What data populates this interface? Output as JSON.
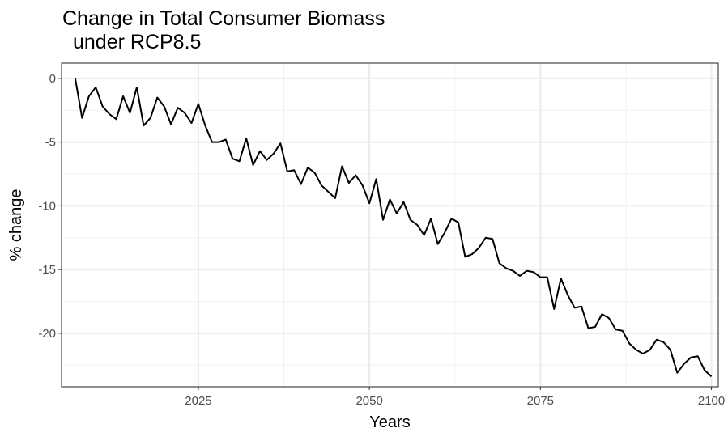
{
  "chart_data": {
    "type": "line",
    "title": [
      "Change in Total Consumer Biomass",
      "under RCP8.5"
    ],
    "xlabel": "Years",
    "ylabel": "% change",
    "xlim": [
      2005,
      2101
    ],
    "ylim": [
      -24.2,
      1.2
    ],
    "xticks": [
      2025,
      2050,
      2075,
      2100
    ],
    "yticks": [
      0,
      -5,
      -10,
      -15,
      -20
    ],
    "grid": true,
    "legend": "none",
    "series": [
      {
        "color": "#000000",
        "x": [
          2007,
          2008,
          2009,
          2010,
          2011,
          2012,
          2013,
          2014,
          2015,
          2016,
          2017,
          2018,
          2019,
          2020,
          2021,
          2022,
          2023,
          2024,
          2025,
          2026,
          2027,
          2028,
          2029,
          2030,
          2031,
          2032,
          2033,
          2034,
          2035,
          2036,
          2037,
          2038,
          2039,
          2040,
          2041,
          2042,
          2043,
          2044,
          2045,
          2046,
          2047,
          2048,
          2049,
          2050,
          2051,
          2052,
          2053,
          2054,
          2055,
          2056,
          2057,
          2058,
          2059,
          2060,
          2061,
          2062,
          2063,
          2064,
          2065,
          2066,
          2067,
          2068,
          2069,
          2070,
          2071,
          2072,
          2073,
          2074,
          2075,
          2076,
          2077,
          2078,
          2079,
          2080,
          2081,
          2082,
          2083,
          2084,
          2085,
          2086,
          2087,
          2088,
          2089,
          2090,
          2091,
          2092,
          2093,
          2094,
          2095,
          2096,
          2097,
          2098,
          2099,
          2100
        ],
        "values": [
          0,
          -3.1,
          -1.4,
          -0.7,
          -2.2,
          -2.8,
          -3.2,
          -1.4,
          -2.7,
          -0.7,
          -3.7,
          -3.1,
          -1.5,
          -2.2,
          -3.6,
          -2.3,
          -2.7,
          -3.5,
          -2.0,
          -3.7,
          -5.0,
          -5.0,
          -4.8,
          -6.3,
          -6.5,
          -4.7,
          -6.8,
          -5.7,
          -6.4,
          -5.9,
          -5.1,
          -7.3,
          -7.2,
          -8.3,
          -7.0,
          -7.4,
          -8.4,
          -8.9,
          -9.4,
          -6.9,
          -8.2,
          -7.6,
          -8.4,
          -9.8,
          -7.9,
          -11.1,
          -9.5,
          -10.6,
          -9.7,
          -11.1,
          -11.5,
          -12.3,
          -11.0,
          -13.0,
          -12.1,
          -11.0,
          -11.3,
          -14.0,
          -13.8,
          -13.3,
          -12.5,
          -12.6,
          -14.5,
          -14.9,
          -15.1,
          -15.5,
          -15.1,
          -15.2,
          -15.6,
          -15.6,
          -18.1,
          -15.7,
          -17.0,
          -18.0,
          -17.9,
          -19.6,
          -19.5,
          -18.5,
          -18.8,
          -19.7,
          -19.8,
          -20.8,
          -21.3,
          -21.6,
          -21.3,
          -20.5,
          -20.7,
          -21.3,
          -23.1,
          -22.4,
          -21.9,
          -21.8,
          -22.9,
          -23.4
        ]
      }
    ]
  }
}
